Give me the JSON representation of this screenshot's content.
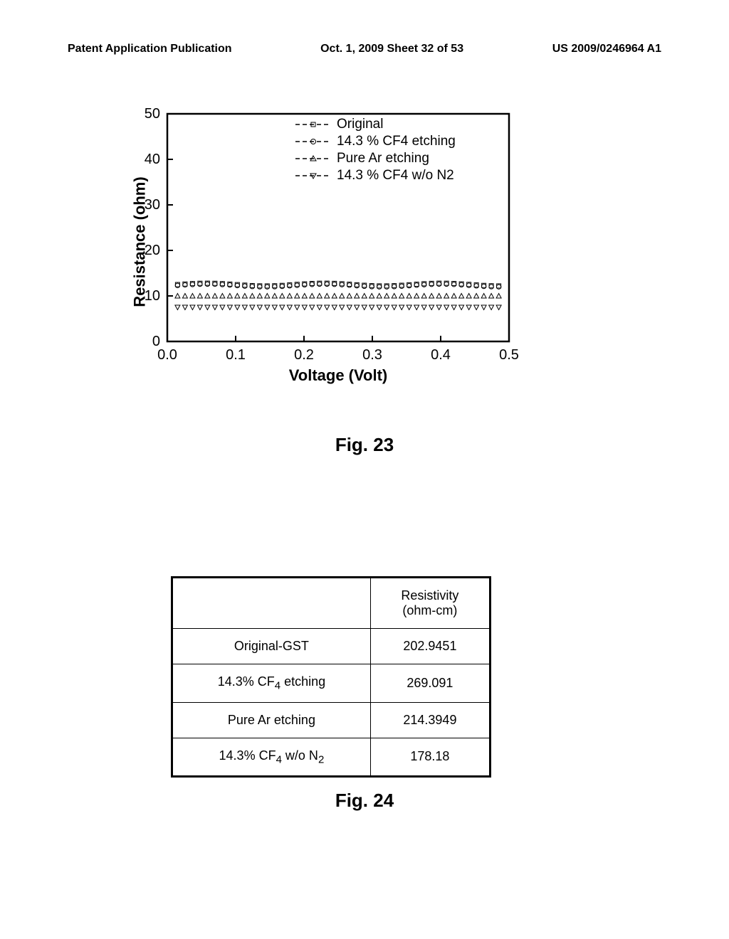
{
  "header": {
    "left": "Patent Application Publication",
    "center": "Oct. 1, 2009  Sheet 32 of 53",
    "right": "US 2009/0246964 A1"
  },
  "chart": {
    "type": "scatter-line",
    "ylabel": "Resistance (ohm)",
    "xlabel": "Voltage (Volt)",
    "ylim": [
      0,
      50
    ],
    "xlim": [
      0.0,
      0.5
    ],
    "ytick_step": 10,
    "xtick_step": 0.1,
    "yticks": [
      "0",
      "10",
      "20",
      "30",
      "40",
      "50"
    ],
    "xticks": [
      "0.0",
      "0.1",
      "0.2",
      "0.3",
      "0.4",
      "0.5"
    ],
    "background_color": "#ffffff",
    "axis_color": "#000000",
    "axis_width": 2,
    "legend": {
      "items": [
        {
          "label": "Original",
          "marker": "square"
        },
        {
          "label": "14.3 % CF4 etching",
          "marker": "circle"
        },
        {
          "label": "Pure Ar etching",
          "marker": "triangle-up"
        },
        {
          "label": "14.3 % CF4 w/o N2",
          "marker": "triangle-down"
        }
      ]
    },
    "series": [
      {
        "name": "Original",
        "marker": "square",
        "y_approx": 12.5
      },
      {
        "name": "14.3 % CF4 etching",
        "marker": "circle",
        "y_approx": 12.3
      },
      {
        "name": "Pure Ar etching",
        "marker": "triangle-up",
        "y_approx": 10
      },
      {
        "name": "14.3 % CF4 w/o N2",
        "marker": "triangle-down",
        "y_approx": 7.5
      }
    ],
    "marker_count": 44,
    "title_fontsize": 22,
    "tick_fontsize": 20
  },
  "fig23_caption": "Fig. 23",
  "table": {
    "columns": [
      "",
      "Resistivity (ohm-cm)"
    ],
    "rows": [
      [
        "Original-GST",
        "202.9451"
      ],
      [
        "14.3% CF₄ etching",
        "269.091"
      ],
      [
        "Pure Ar etching",
        "214.3949"
      ],
      [
        "14.3% CF₄ w/o N₂",
        "178.18"
      ]
    ],
    "header_fontsize": 18,
    "cell_fontsize": 18
  },
  "fig24_caption": "Fig. 24"
}
